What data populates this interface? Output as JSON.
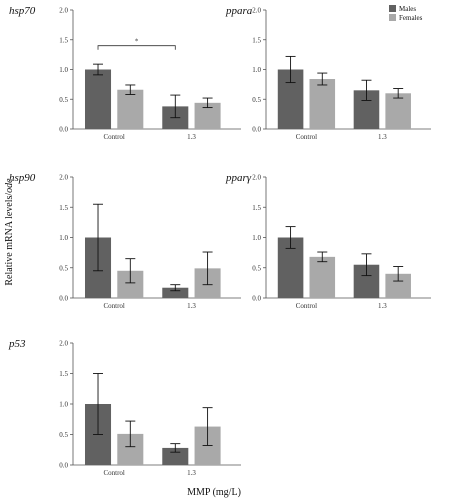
{
  "chart_data": {
    "type": "bar",
    "xlabel": "MMP (mg/L)",
    "ylabel_prefix": "Relative mRNA levels/",
    "ylabel_suffix": "ode",
    "legend": [
      {
        "name": "Males",
        "color": "#616161"
      },
      {
        "name": "Females",
        "color": "#a9a9a9"
      }
    ],
    "categories": [
      "Control",
      "1.3"
    ],
    "panels": [
      {
        "gene": "hsp70",
        "ylim": [
          0,
          2.0
        ],
        "yticks": [
          "0.0",
          "0.5",
          "1.0",
          "1.5",
          "2.0"
        ],
        "series": [
          {
            "name": "Males",
            "values": [
              1.0,
              0.38
            ],
            "errors": [
              0.09,
              0.19
            ]
          },
          {
            "name": "Females",
            "values": [
              0.66,
              0.44
            ],
            "errors": [
              0.08,
              0.08
            ]
          }
        ],
        "significance": {
          "label": "*",
          "from": "Control",
          "to": "1.3"
        }
      },
      {
        "gene": "ppara",
        "ylim": [
          0,
          2.0
        ],
        "yticks": [
          "0.0",
          "0.5",
          "1.0",
          "1.5",
          "2.0"
        ],
        "series": [
          {
            "name": "Males",
            "values": [
              1.0,
              0.65
            ],
            "errors": [
              0.22,
              0.17
            ]
          },
          {
            "name": "Females",
            "values": [
              0.84,
              0.6
            ],
            "errors": [
              0.1,
              0.08
            ]
          }
        ]
      },
      {
        "gene": "hsp90",
        "ylim": [
          0,
          2.0
        ],
        "yticks": [
          "0.0",
          "0.5",
          "1.0",
          "1.5",
          "2.0"
        ],
        "series": [
          {
            "name": "Males",
            "values": [
              1.0,
              0.17
            ],
            "errors": [
              0.55,
              0.05
            ]
          },
          {
            "name": "Females",
            "values": [
              0.45,
              0.49
            ],
            "errors": [
              0.2,
              0.27
            ]
          }
        ]
      },
      {
        "gene": "pparγ",
        "ylim": [
          0,
          2.0
        ],
        "yticks": [
          "0.0",
          "0.5",
          "1.0",
          "1.5",
          "2.0"
        ],
        "series": [
          {
            "name": "Males",
            "values": [
              1.0,
              0.55
            ],
            "errors": [
              0.18,
              0.18
            ]
          },
          {
            "name": "Females",
            "values": [
              0.68,
              0.4
            ],
            "errors": [
              0.08,
              0.12
            ]
          }
        ]
      },
      {
        "gene": "p53",
        "ylim": [
          0,
          2.0
        ],
        "yticks": [
          "0.0",
          "0.5",
          "1.0",
          "1.5",
          "2.0"
        ],
        "series": [
          {
            "name": "Males",
            "values": [
              1.0,
              0.28
            ],
            "errors": [
              0.5,
              0.07
            ]
          },
          {
            "name": "Females",
            "values": [
              0.51,
              0.63
            ],
            "errors": [
              0.21,
              0.31
            ]
          }
        ]
      }
    ]
  }
}
